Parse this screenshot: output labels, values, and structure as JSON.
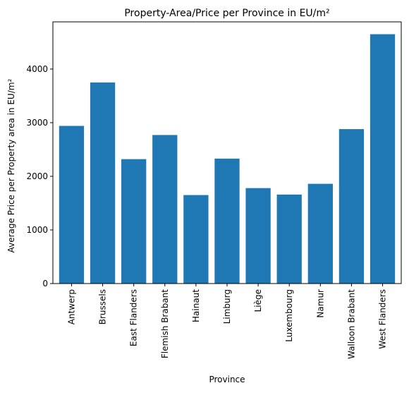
{
  "chart_data": {
    "type": "bar",
    "title": "Property-Area/Price per Province in EU/m²",
    "xlabel": "Province",
    "ylabel": "Average Price per Property area in EU/m²",
    "categories": [
      "Antwerp",
      "Brussels",
      "East Flanders",
      "Flemish Brabant",
      "Hainaut",
      "Limburg",
      "Liège",
      "Luxembourg",
      "Namur",
      "Walloon Brabant",
      "West Flanders"
    ],
    "values": [
      2940,
      3750,
      2320,
      2770,
      1650,
      2330,
      1780,
      1660,
      1860,
      2880,
      4650
    ],
    "ylim": [
      0,
      4880
    ],
    "yticks": [
      0,
      1000,
      2000,
      3000,
      4000
    ],
    "ytick_labels": [
      "0",
      "1000",
      "2000",
      "3000",
      "4000"
    ],
    "grid": false,
    "bar_color": "#1f77b4"
  }
}
